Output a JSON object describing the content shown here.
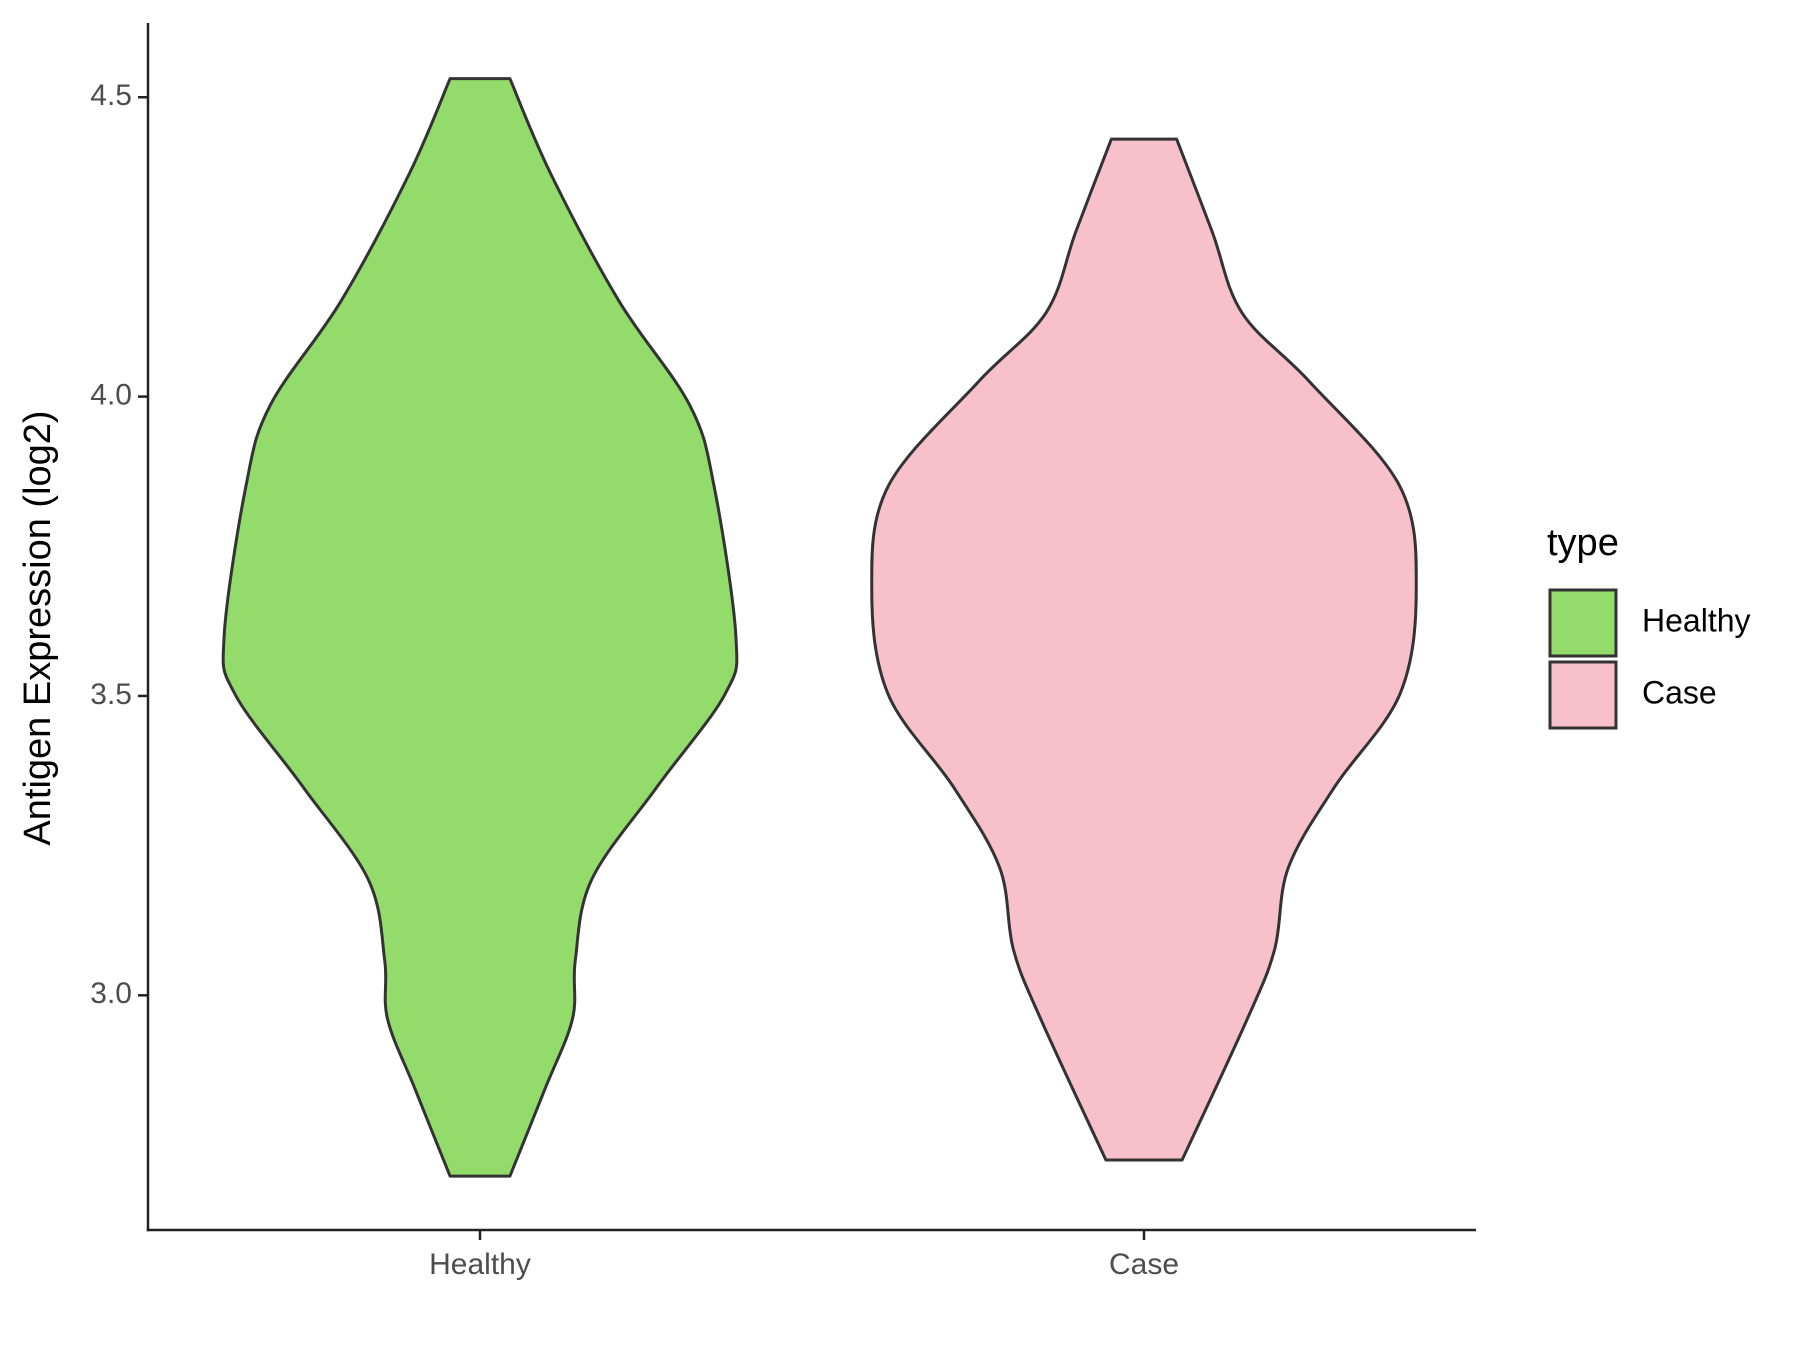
{
  "chart_data": {
    "type": "violin",
    "y_label": "Antigen Expression (log2)",
    "categories": [
      "Healthy",
      "Case"
    ],
    "legend_title": "type",
    "legend_position": "right",
    "ylim": [
      2.608,
      4.624
    ],
    "yticks": [
      {
        "value": 3,
        "label": "3.0"
      },
      3.5,
      {
        "value": 4,
        "label": "4.0"
      },
      4.5
    ],
    "grid": false,
    "series": [
      {
        "name": "Healthy",
        "color": "#93dc6b",
        "y": [
          4.531,
          4.372,
          4.16,
          3.986,
          3.85,
          3.599,
          3.503,
          3.348,
          3.193,
          3.058,
          2.961,
          2.845,
          2.698
        ],
        "density": [
          0.11,
          0.26,
          0.51,
          0.77,
          0.86,
          0.94,
          0.9,
          0.65,
          0.41,
          0.35,
          0.34,
          0.24,
          0.11
        ]
      },
      {
        "name": "Case",
        "color": "#f7c0cb",
        "y": [
          4.43,
          4.276,
          4.14,
          4.024,
          3.85,
          3.677,
          3.503,
          3.348,
          3.213,
          3.077,
          2.961,
          2.725
        ],
        "density": [
          0.12,
          0.25,
          0.36,
          0.61,
          0.94,
          1.0,
          0.94,
          0.7,
          0.53,
          0.48,
          0.38,
          0.14
        ]
      }
    ]
  }
}
